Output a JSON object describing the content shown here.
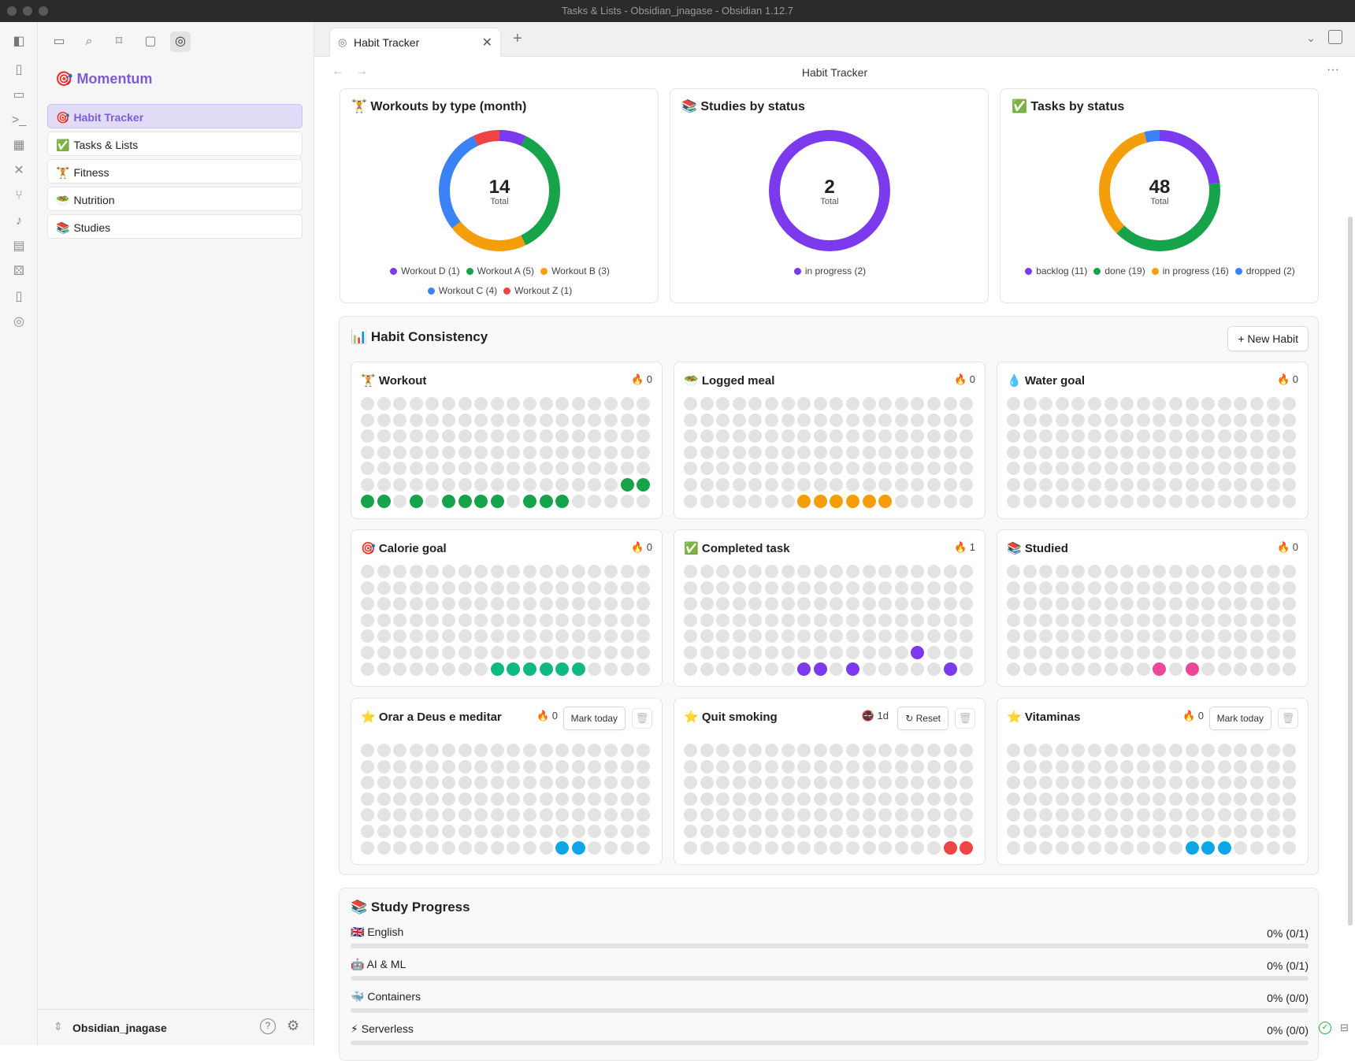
{
  "window": {
    "title": "Tasks & Lists - Obsidian_jnagase - Obsidian 1.12.7"
  },
  "ribbon": {
    "icons": [
      "file-icon",
      "terminal-box-icon",
      "terminal-icon",
      "grid-icon",
      "tools-icon",
      "graph-icon",
      "microphone-icon",
      "calendar-icon",
      "dice-icon",
      "tablet-icon",
      "compass-icon"
    ]
  },
  "sidebar": {
    "brand": "Momentum",
    "brand_icon": "🎯",
    "items": [
      {
        "icon": "🎯",
        "label": "Habit Tracker",
        "active": true
      },
      {
        "icon": "✅",
        "label": "Tasks & Lists",
        "active": false
      },
      {
        "icon": "🏋",
        "label": "Fitness",
        "active": false
      },
      {
        "icon": "🥗",
        "label": "Nutrition",
        "active": false
      },
      {
        "icon": "📚",
        "label": "Studies",
        "active": false
      }
    ],
    "vault_name": "Obsidian_jnagase"
  },
  "tabs": [
    {
      "label": "Habit Tracker"
    }
  ],
  "header": {
    "title": "Habit Tracker"
  },
  "donuts": [
    {
      "icon": "🏋",
      "title": "Workouts by type (month)",
      "total": "14",
      "total_label": "Total",
      "slices": [
        {
          "name": "Workout D",
          "value": 1,
          "color": "#7c3aed"
        },
        {
          "name": "Workout A",
          "value": 5,
          "color": "#16a34a"
        },
        {
          "name": "Workout B",
          "value": 3,
          "color": "#f59e0b"
        },
        {
          "name": "Workout C",
          "value": 4,
          "color": "#3b82f6"
        },
        {
          "name": "Workout Z",
          "value": 1,
          "color": "#ef4444"
        }
      ],
      "legend": [
        "Workout D (1)",
        "Workout A (5)",
        "Workout B (3)",
        "Workout C (4)",
        "Workout Z (1)"
      ]
    },
    {
      "icon": "📚",
      "title": "Studies by status",
      "total": "2",
      "total_label": "Total",
      "slices": [
        {
          "name": "in progress",
          "value": 2,
          "color": "#7c3aed"
        }
      ],
      "legend": [
        "in progress (2)"
      ]
    },
    {
      "icon": "✅",
      "title": "Tasks by status",
      "total": "48",
      "total_label": "Total",
      "slices": [
        {
          "name": "backlog",
          "value": 11,
          "color": "#7c3aed"
        },
        {
          "name": "done",
          "value": 19,
          "color": "#16a34a"
        },
        {
          "name": "in progress",
          "value": 16,
          "color": "#f59e0b"
        },
        {
          "name": "dropped",
          "value": 2,
          "color": "#3b82f6"
        }
      ],
      "legend": [
        "backlog (11)",
        "done (19)",
        "in progress (16)",
        "dropped (2)"
      ]
    }
  ],
  "consistency": {
    "title": "Habit Consistency",
    "icon": "📊",
    "new_habit_label": "+ New Habit",
    "habits": [
      {
        "icon": "🏋",
        "name": "Workout",
        "streak": "0",
        "streak_icon": "🔥",
        "color": "#16a34a",
        "filled": [
          106,
          107,
          108,
          109,
          111,
          113,
          114,
          115,
          116,
          118,
          119,
          120
        ]
      },
      {
        "icon": "🥗",
        "name": "Logged meal",
        "streak": "0",
        "streak_icon": "🔥",
        "color": "#f59e0b",
        "filled": [
          115,
          116,
          117,
          118,
          119,
          120
        ]
      },
      {
        "icon": "💧",
        "name": "Water goal",
        "streak": "0",
        "streak_icon": "🔥",
        "color": "#3b82f6",
        "filled": []
      },
      {
        "icon": "🎯",
        "name": "Calorie goal",
        "streak": "0",
        "streak_icon": "🔥",
        "color": "#10b981",
        "filled": [
          116,
          117,
          118,
          119,
          120,
          121
        ]
      },
      {
        "icon": "✅",
        "name": "Completed task",
        "streak": "1",
        "streak_icon": "🔥",
        "color": "#7c3aed",
        "filled": [
          104,
          115,
          116,
          118,
          124
        ]
      },
      {
        "icon": "📚",
        "name": "Studied",
        "streak": "0",
        "streak_icon": "🔥",
        "color": "#ec4899",
        "filled": [
          117,
          119
        ]
      },
      {
        "icon": "⭐",
        "name": "Orar a Deus e meditar",
        "streak": "0",
        "streak_icon": "🔥",
        "color": "#0ea5e9",
        "filled": [
          120,
          121
        ],
        "button": "Mark today",
        "trash": true
      },
      {
        "icon": "⭐",
        "name": "Quit smoking",
        "streak": "1d",
        "streak_icon": "🚭",
        "color": "#ef4444",
        "filled": [
          124,
          125
        ],
        "button": "↻ Reset",
        "trash": true
      },
      {
        "icon": "⭐",
        "name": "Vitaminas",
        "streak": "0",
        "streak_icon": "🔥",
        "color": "#0ea5e9",
        "filled": [
          119,
          120,
          121
        ],
        "button": "Mark today",
        "trash": true
      }
    ]
  },
  "study_progress": {
    "title": "Study Progress",
    "icon": "📚",
    "items": [
      {
        "icon": "🇬🇧",
        "name": "English",
        "pct": "0% (0/1)",
        "progress": 0
      },
      {
        "icon": "🤖",
        "name": "AI & ML",
        "pct": "0% (0/1)",
        "progress": 0
      },
      {
        "icon": "🐳",
        "name": "Containers",
        "pct": "0% (0/0)",
        "progress": 0
      },
      {
        "icon": "⚡",
        "name": "Serverless",
        "pct": "0% (0/0)",
        "progress": 0
      }
    ]
  }
}
